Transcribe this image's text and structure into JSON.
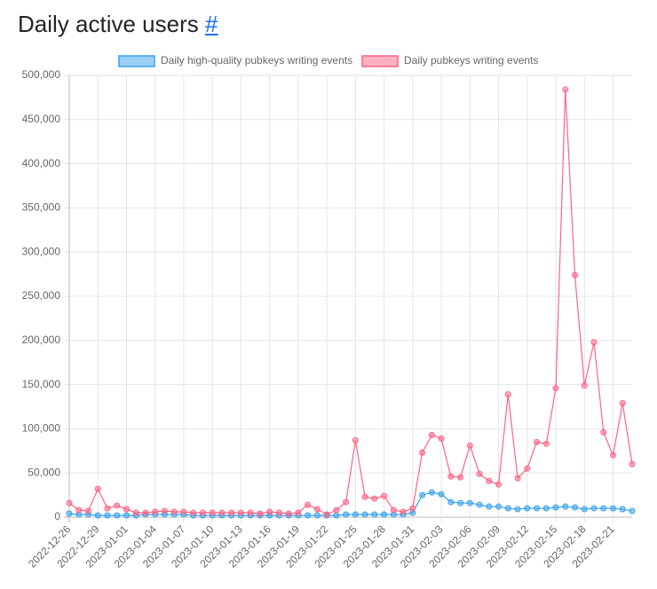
{
  "heading": {
    "text": "Daily active users",
    "link": "#"
  },
  "chart_data": {
    "type": "line",
    "categories": [
      "2022-12-26",
      null,
      null,
      "2022-12-29",
      null,
      null,
      "2023-01-01",
      null,
      null,
      "2023-01-04",
      null,
      null,
      "2023-01-07",
      null,
      null,
      "2023-01-10",
      null,
      null,
      "2023-01-13",
      null,
      null,
      "2023-01-16",
      null,
      null,
      "2023-01-19",
      null,
      null,
      "2023-01-22",
      null,
      null,
      "2023-01-25",
      null,
      null,
      "2023-01-28",
      null,
      null,
      "2023-01-31",
      null,
      null,
      "2023-02-03",
      null,
      null,
      "2023-02-06",
      null,
      null,
      "2023-02-09",
      null,
      null,
      "2023-02-12",
      null,
      null,
      "2023-02-15",
      null,
      null,
      "2023-02-18",
      null,
      null,
      "2023-02-21",
      null,
      null
    ],
    "series": [
      {
        "name": "Daily high-quality pubkeys writing events",
        "color": "#36a2eb",
        "values": [
          4000,
          3000,
          3000,
          2000,
          2000,
          2000,
          2000,
          2000,
          3000,
          3000,
          3000,
          3000,
          3000,
          2000,
          2000,
          2000,
          2000,
          2000,
          2000,
          2000,
          2000,
          2000,
          2000,
          2000,
          2000,
          2000,
          2000,
          2000,
          2000,
          3000,
          3000,
          3000,
          3000,
          3000,
          3000,
          3000,
          5000,
          25000,
          28000,
          26000,
          17000,
          16000,
          16000,
          14000,
          12000,
          12000,
          10000,
          9000,
          10000,
          10000,
          10000,
          11000,
          12000,
          11000,
          9000,
          10000,
          10000,
          10000,
          9000,
          7000
        ]
      },
      {
        "name": "Daily pubkeys writing events",
        "color": "#ff6384",
        "values": [
          16000,
          8000,
          7000,
          32000,
          10000,
          13000,
          9000,
          5000,
          5000,
          6000,
          7000,
          6000,
          6000,
          5000,
          5000,
          5000,
          5000,
          5000,
          5000,
          5000,
          4000,
          6000,
          5000,
          4000,
          5000,
          14000,
          9000,
          3000,
          8000,
          17000,
          87000,
          23000,
          21000,
          24000,
          8000,
          6000,
          10000,
          73000,
          93000,
          89000,
          46000,
          45000,
          81000,
          49000,
          41000,
          37000,
          139000,
          44000,
          55000,
          85000,
          83000,
          146000,
          484000,
          274000,
          149000,
          198000,
          96000,
          70000,
          129000,
          60000
        ]
      }
    ],
    "ylim": [
      0,
      500000
    ],
    "yticks": [
      0,
      {
        "value": 50000,
        "label": "50,000"
      },
      {
        "value": 100000,
        "label": "100,000"
      },
      {
        "value": 150000,
        "label": "150,000"
      },
      {
        "value": 200000,
        "label": "200,000"
      },
      {
        "value": 250000,
        "label": "250,000"
      },
      {
        "value": 300000,
        "label": "300,000"
      },
      {
        "value": 350000,
        "label": "350,000"
      },
      {
        "value": 400000,
        "label": "400,000"
      },
      {
        "value": 450000,
        "label": "450,000"
      },
      {
        "value": 500000,
        "label": "500,000"
      }
    ],
    "grid": true
  }
}
